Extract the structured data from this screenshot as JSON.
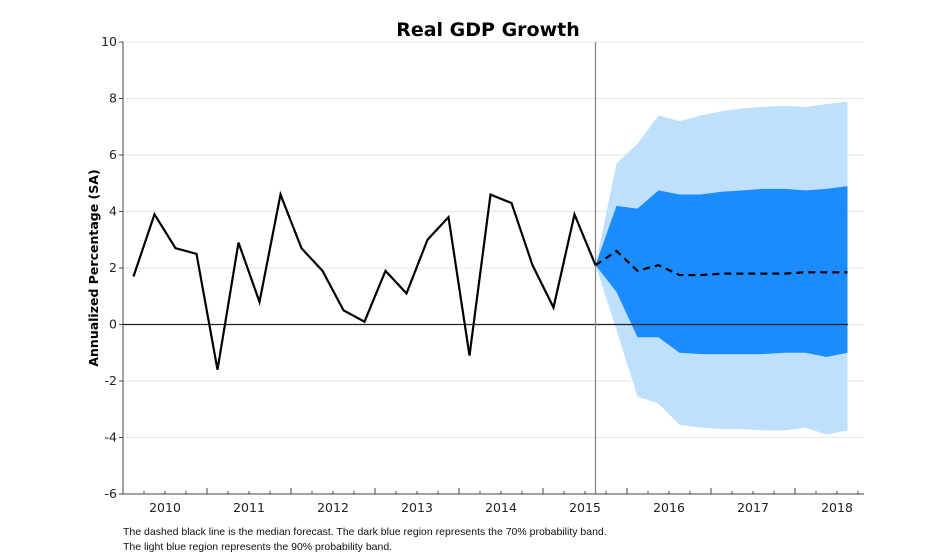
{
  "chart_data": {
    "type": "line",
    "title": "Real GDP Growth",
    "xlabel": "",
    "ylabel": "Annualized Percentage (SA)",
    "ylim": [
      -6,
      10
    ],
    "yticks": [
      -6,
      -4,
      -2,
      0,
      2,
      4,
      6,
      8,
      10
    ],
    "xticks": [
      "2010",
      "2011",
      "2012",
      "2013",
      "2014",
      "2015",
      "2016",
      "2017",
      "2018"
    ],
    "grid": "horizontal",
    "forecast_start": "2015Q3",
    "colors": {
      "history": "#000000",
      "median": "#000000",
      "band70": "#1a8cff",
      "band90": "#bfe0fd",
      "grid": "#e6e6e6"
    },
    "history": {
      "x": [
        "2010Q1",
        "2010Q2",
        "2010Q3",
        "2010Q4",
        "2011Q1",
        "2011Q2",
        "2011Q3",
        "2011Q4",
        "2012Q1",
        "2012Q2",
        "2012Q3",
        "2012Q4",
        "2013Q1",
        "2013Q2",
        "2013Q3",
        "2013Q4",
        "2014Q1",
        "2014Q2",
        "2014Q3",
        "2014Q4",
        "2015Q1",
        "2015Q2",
        "2015Q3"
      ],
      "values": [
        1.7,
        3.9,
        2.7,
        2.5,
        -1.6,
        2.9,
        0.8,
        4.6,
        2.7,
        1.9,
        0.5,
        0.1,
        1.9,
        1.1,
        3.0,
        3.8,
        -1.1,
        4.6,
        4.3,
        2.1,
        0.6,
        3.9,
        2.1
      ]
    },
    "forecast": {
      "x": [
        "2015Q3",
        "2015Q4",
        "2016Q1",
        "2016Q2",
        "2016Q3",
        "2016Q4",
        "2017Q1",
        "2017Q2",
        "2017Q3",
        "2017Q4",
        "2018Q1",
        "2018Q2",
        "2018Q3"
      ],
      "median": [
        2.1,
        2.6,
        1.9,
        2.1,
        1.75,
        1.75,
        1.8,
        1.8,
        1.8,
        1.8,
        1.85,
        1.85,
        1.85
      ],
      "band70_upper": [
        2.1,
        4.2,
        4.1,
        4.75,
        4.6,
        4.6,
        4.7,
        4.75,
        4.8,
        4.8,
        4.75,
        4.8,
        4.9
      ],
      "band70_lower": [
        2.1,
        1.15,
        -0.45,
        -0.45,
        -1.0,
        -1.05,
        -1.05,
        -1.05,
        -1.05,
        -1.0,
        -1.0,
        -1.15,
        -1.0
      ],
      "band90_upper": [
        2.1,
        5.7,
        6.4,
        7.4,
        7.2,
        7.4,
        7.55,
        7.65,
        7.7,
        7.75,
        7.7,
        7.8,
        7.9
      ],
      "band90_lower": [
        2.1,
        -0.2,
        -2.55,
        -2.8,
        -3.55,
        -3.65,
        -3.7,
        -3.7,
        -3.75,
        -3.75,
        -3.65,
        -3.9,
        -3.75
      ]
    }
  },
  "footnotes": [
    "The dashed black line is the median forecast. The dark blue region represents the 70% probability band.",
    "The light blue region represents the 90% probability band."
  ]
}
